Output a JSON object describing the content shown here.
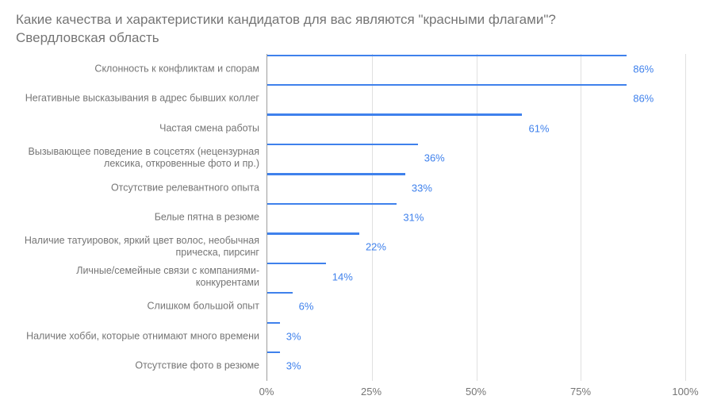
{
  "chart": {
    "type": "bar-horizontal",
    "title": "Какие качества и характеристики кандидатов для вас являются \"красными флагами\"?\nСвердловская область",
    "title_color": "#757575",
    "title_fontsize": 17,
    "background_color": "#ffffff",
    "bar_color": "#3f81ec",
    "value_label_color": "#3f81ec",
    "axis_label_color": "#757575",
    "grid_color": "#e0e0e0",
    "axis_line_color": "#9e9e9e",
    "label_fontsize": 12.5,
    "value_fontsize": 13,
    "xaxis": {
      "min": 0,
      "max": 100,
      "ticks": [
        0,
        25,
        50,
        75,
        100
      ],
      "tick_labels": [
        "0%",
        "25%",
        "50%",
        "75%",
        "100%"
      ]
    },
    "bar_thickness_ratio": 0.68,
    "items": [
      {
        "label": "Склонность к конфликтам и спорам",
        "value": 86,
        "text": "86%"
      },
      {
        "label": "Негативные высказывания в адрес бывших коллег",
        "value": 86,
        "text": "86%"
      },
      {
        "label": "Частая смена работы",
        "value": 61,
        "text": "61%"
      },
      {
        "label": "Вызывающее поведение в соцсетях (нецензурная лексика, откровенные фото и пр.)",
        "value": 36,
        "text": "36%"
      },
      {
        "label": "Отсутствие релевантного опыта",
        "value": 33,
        "text": "33%"
      },
      {
        "label": "Белые пятна в резюме",
        "value": 31,
        "text": "31%"
      },
      {
        "label": "Наличие татуировок, яркий цвет волос, необычная прическа, пирсинг",
        "value": 22,
        "text": "22%"
      },
      {
        "label": "Личные/семейные связи с компаниями-конкурентами",
        "value": 14,
        "text": "14%"
      },
      {
        "label": "Слишком большой опыт",
        "value": 6,
        "text": "6%"
      },
      {
        "label": "Наличие хобби, которые отнимают много времени",
        "value": 3,
        "text": "3%"
      },
      {
        "label": "Отсутствие фото в резюме",
        "value": 3,
        "text": "3%"
      }
    ]
  }
}
